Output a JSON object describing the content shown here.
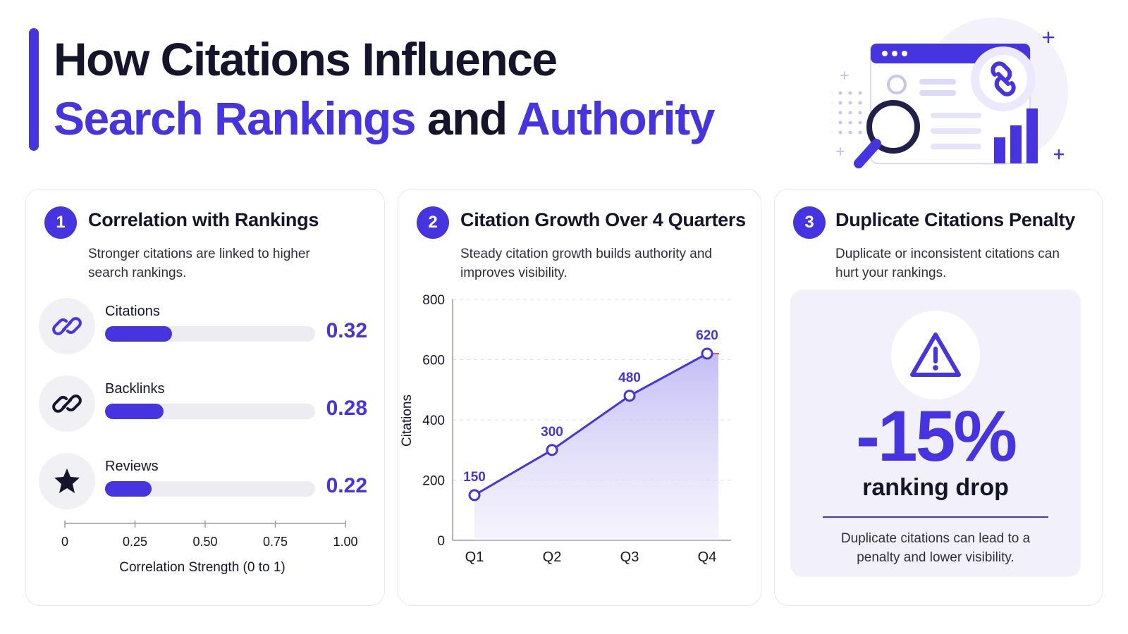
{
  "header": {
    "line1": "How Citations Influence",
    "line2_part1": "Search Rankings",
    "line2_part2": " and ",
    "line2_part3": "Authority"
  },
  "colors": {
    "accent": "#4634e0",
    "text": "#14142b",
    "track": "#ececf2",
    "panel": "#f2f1fb"
  },
  "cards": {
    "correlation": {
      "number": "1",
      "title": "Correlation with Rankings",
      "description": "Stronger citations are linked to higher search rankings."
    },
    "growth": {
      "number": "2",
      "title": "Citation Growth Over 4 Quarters",
      "description": "Steady citation growth builds authority and improves visibility."
    },
    "penalty": {
      "number": "3",
      "title": "Duplicate Citations Penalty",
      "description": "Duplicate or inconsistent citations can hurt your rankings.",
      "icon": "warning-triangle-icon",
      "value": "-15%",
      "label": "ranking drop",
      "note": "Duplicate citations can lead to a penalty and lower visibility."
    }
  },
  "chart_data": [
    {
      "type": "bar",
      "orientation": "horizontal",
      "categories": [
        "Citations",
        "Backlinks",
        "Reviews"
      ],
      "values": [
        0.32,
        0.28,
        0.22
      ],
      "value_labels": [
        "0.32",
        "0.28",
        "0.22"
      ],
      "icons": [
        "link-icon",
        "chain-link-icon",
        "star-icon"
      ],
      "xlabel": "Correlation Strength (0 to 1)",
      "xlim": [
        0,
        1
      ],
      "xticks": [
        "0",
        "0.25",
        "0.50",
        "0.75",
        "1.00"
      ],
      "grid": false
    },
    {
      "type": "area",
      "categories": [
        "Q1",
        "Q2",
        "Q3",
        "Q4"
      ],
      "values": [
        150,
        300,
        480,
        620
      ],
      "value_labels": [
        "150",
        "300",
        "480",
        "620"
      ],
      "ylabel": "Citations",
      "ylim": [
        0,
        800
      ],
      "yticks": [
        "0",
        "200",
        "400",
        "600",
        "800"
      ],
      "grid": true
    }
  ]
}
